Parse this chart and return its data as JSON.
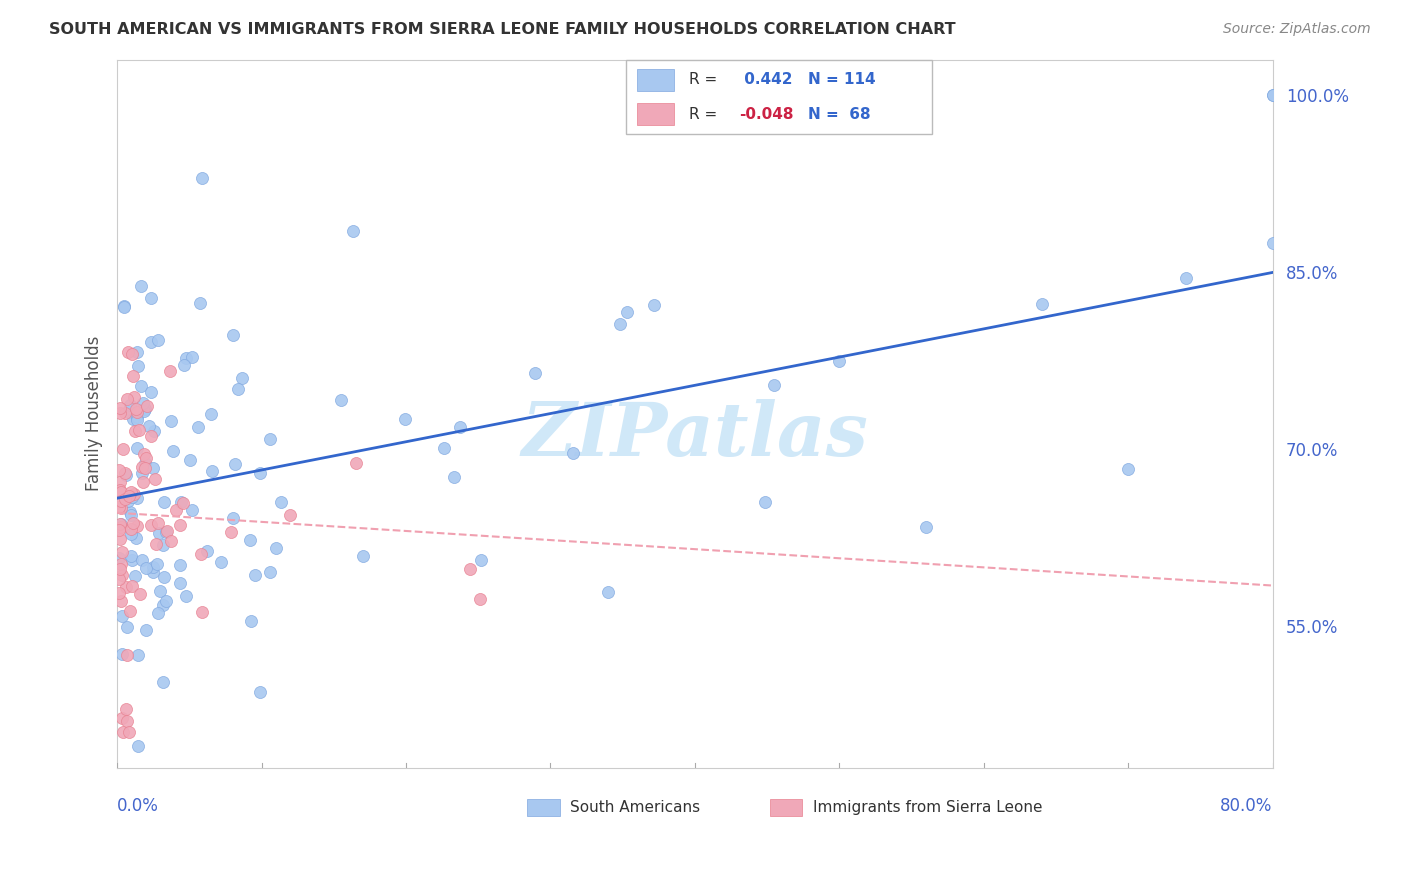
{
  "title": "SOUTH AMERICAN VS IMMIGRANTS FROM SIERRA LEONE FAMILY HOUSEHOLDS CORRELATION CHART",
  "source": "Source: ZipAtlas.com",
  "ylabel": "Family Households",
  "xmin": 0.0,
  "xmax": 0.8,
  "ymin": 0.43,
  "ymax": 1.03,
  "r_blue": 0.442,
  "n_blue": 114,
  "r_pink": -0.048,
  "n_pink": 68,
  "blue_color": "#a8c8f0",
  "pink_color": "#f0a8b8",
  "blue_edge_color": "#80a8e0",
  "pink_edge_color": "#e88090",
  "blue_line_color": "#3366cc",
  "pink_line_color": "#f0a0b0",
  "watermark_color": "#d0e8f8",
  "background_color": "#ffffff",
  "grid_color": "#e0e0e0",
  "title_color": "#333333",
  "axis_label_color": "#4466cc",
  "ytick_values": [
    0.55,
    0.7,
    0.85,
    1.0
  ],
  "ytick_labels": [
    "55.0%",
    "70.0%",
    "85.0%",
    "100.0%"
  ]
}
